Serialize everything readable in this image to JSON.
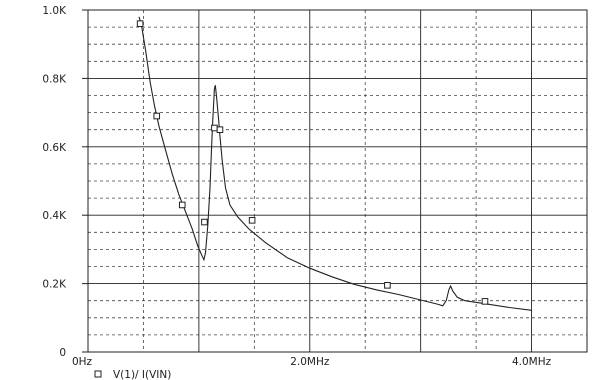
{
  "chart_data": {
    "type": "line",
    "title": "",
    "xlabel": "",
    "ylabel": "",
    "xlim": [
      0,
      4500000
    ],
    "ylim": [
      0,
      1000
    ],
    "x_ticks": [
      {
        "value": 0,
        "label": "0Hz"
      },
      {
        "value": 2000000,
        "label": "2.0MHz"
      },
      {
        "value": 4000000,
        "label": "4.0MHz"
      }
    ],
    "y_ticks": [
      {
        "value": 0,
        "label": "0"
      },
      {
        "value": 200,
        "label": "0.2K"
      },
      {
        "value": 400,
        "label": "0.4K"
      },
      {
        "value": 600,
        "label": "0.6K"
      },
      {
        "value": 800,
        "label": "0.8K"
      },
      {
        "value": 1000,
        "label": "1.0K"
      }
    ],
    "grid": true,
    "legend_position": "bottom-left",
    "series": [
      {
        "name": "V(1)/ I(VIN)",
        "color": "#222222",
        "marker": "square",
        "points": [
          [
            460000,
            980
          ],
          [
            480000,
            960
          ],
          [
            520000,
            880
          ],
          [
            560000,
            790
          ],
          [
            600000,
            720
          ],
          [
            640000,
            660
          ],
          [
            700000,
            590
          ],
          [
            760000,
            520
          ],
          [
            820000,
            460
          ],
          [
            880000,
            410
          ],
          [
            940000,
            360
          ],
          [
            990000,
            310
          ],
          [
            1030000,
            280
          ],
          [
            1045000,
            270
          ],
          [
            1060000,
            290
          ],
          [
            1080000,
            370
          ],
          [
            1100000,
            480
          ],
          [
            1115000,
            600
          ],
          [
            1125000,
            680
          ],
          [
            1135000,
            740
          ],
          [
            1140000,
            770
          ],
          [
            1148000,
            780
          ],
          [
            1160000,
            745
          ],
          [
            1175000,
            690
          ],
          [
            1190000,
            630
          ],
          [
            1210000,
            560
          ],
          [
            1240000,
            480
          ],
          [
            1280000,
            430
          ],
          [
            1350000,
            395
          ],
          [
            1450000,
            360
          ],
          [
            1600000,
            320
          ],
          [
            1800000,
            275
          ],
          [
            2000000,
            245
          ],
          [
            2200000,
            220
          ],
          [
            2400000,
            198
          ],
          [
            2600000,
            182
          ],
          [
            2800000,
            168
          ],
          [
            3000000,
            152
          ],
          [
            3150000,
            140
          ],
          [
            3200000,
            135
          ],
          [
            3230000,
            150
          ],
          [
            3255000,
            182
          ],
          [
            3270000,
            193
          ],
          [
            3290000,
            178
          ],
          [
            3330000,
            160
          ],
          [
            3400000,
            150
          ],
          [
            3600000,
            140
          ],
          [
            3800000,
            130
          ],
          [
            4000000,
            122
          ]
        ],
        "markers": [
          [
            470000,
            960
          ],
          [
            620000,
            690
          ],
          [
            850000,
            430
          ],
          [
            1050000,
            380
          ],
          [
            1140000,
            655
          ],
          [
            1190000,
            650
          ],
          [
            1480000,
            385
          ],
          [
            2700000,
            195
          ],
          [
            3580000,
            148
          ]
        ]
      }
    ]
  },
  "legend": {
    "symbol": "square-icon",
    "label": "V(1)/ I(VIN)"
  }
}
